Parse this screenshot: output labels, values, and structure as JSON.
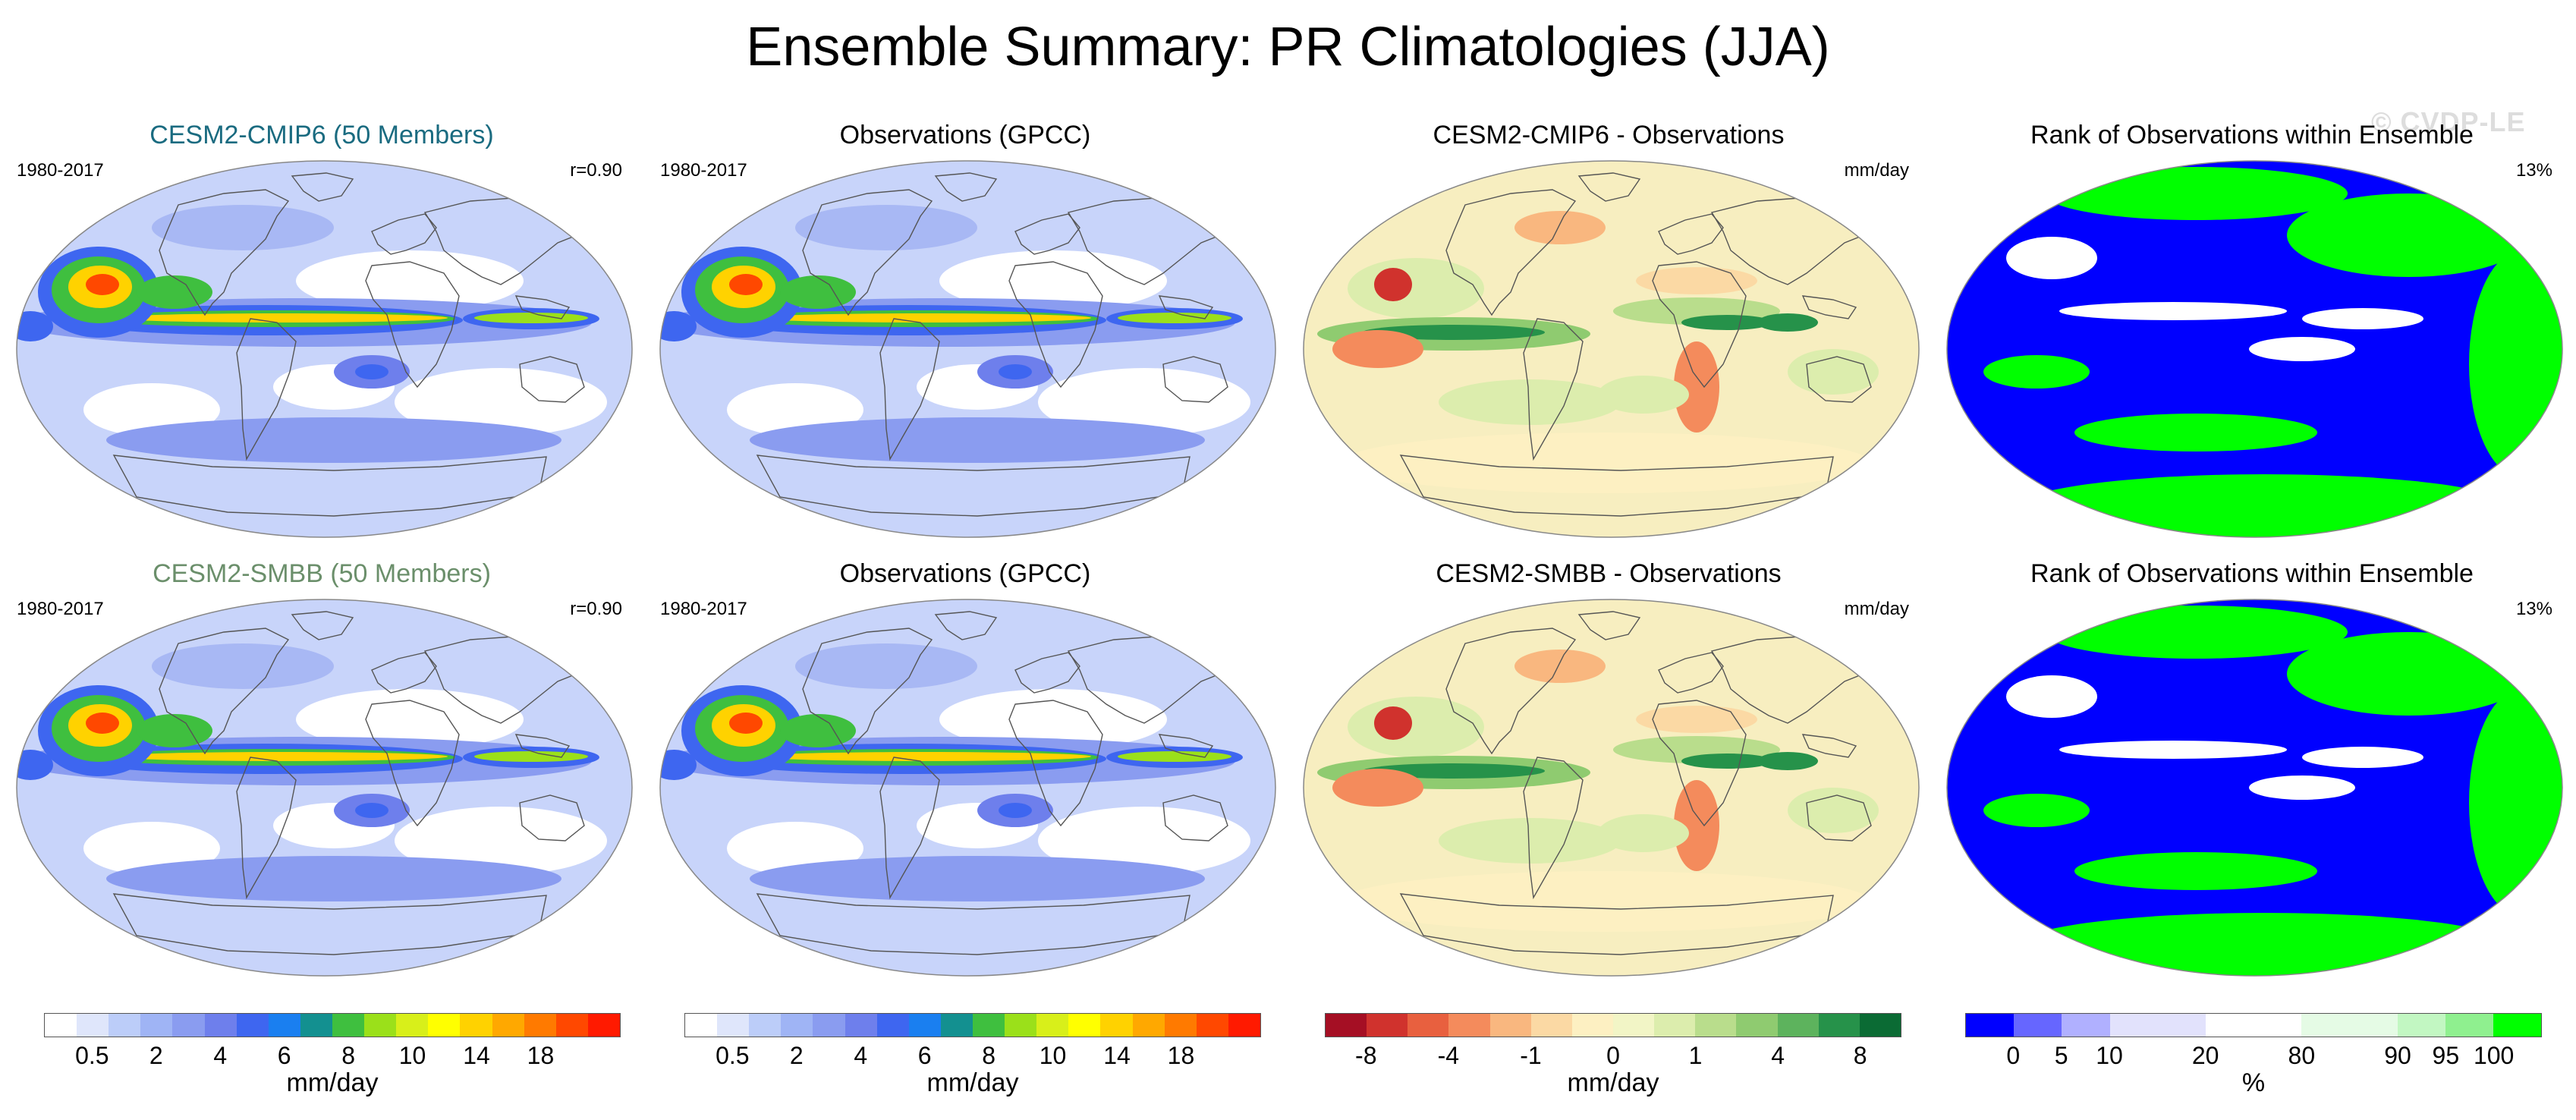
{
  "title": "Ensemble Summary: PR Climatologies (JJA)",
  "watermark": "© CVDP-LE",
  "colors": {
    "model1_title": "#1a6b80",
    "model2_title": "#6b8f6b",
    "land_line": "#555555"
  },
  "rows": [
    {
      "panels": [
        {
          "title": "CESM2-CMIP6 (50 Members)",
          "left": "1980-2017",
          "right": "r=0.90",
          "kind": "precip",
          "title_color": "#1a6b80"
        },
        {
          "title": "Observations (GPCC)",
          "left": "1980-2017",
          "right": "",
          "kind": "precip",
          "title_color": "#000000"
        },
        {
          "title": "CESM2-CMIP6 - Observations",
          "left": "",
          "right": "mm/day",
          "kind": "diff",
          "title_color": "#000000"
        },
        {
          "title": "Rank of Observations within Ensemble",
          "left": "",
          "right": "13%",
          "kind": "rank",
          "title_color": "#000000"
        }
      ]
    },
    {
      "panels": [
        {
          "title": "CESM2-SMBB (50 Members)",
          "left": "1980-2017",
          "right": "r=0.90",
          "kind": "precip",
          "title_color": "#6b8f6b"
        },
        {
          "title": "Observations (GPCC)",
          "left": "1980-2017",
          "right": "",
          "kind": "precip",
          "title_color": "#000000"
        },
        {
          "title": "CESM2-SMBB - Observations",
          "left": "",
          "right": "mm/day",
          "kind": "diff",
          "title_color": "#000000"
        },
        {
          "title": "Rank of Observations within Ensemble",
          "left": "",
          "right": "13%",
          "kind": "rank",
          "title_color": "#000000"
        }
      ]
    }
  ],
  "colorbars": [
    {
      "colors": [
        "#ffffff",
        "#dfe6fb",
        "#bccdf9",
        "#9fb4f5",
        "#8a9cf0",
        "#6e7fec",
        "#3e66f0",
        "#1a7ff0",
        "#139090",
        "#3fbf3f",
        "#9be01a",
        "#d8ef1a",
        "#ffff00",
        "#ffd200",
        "#ffa800",
        "#ff7a00",
        "#ff4800",
        "#ff1a00"
      ],
      "ticks": [
        "0.5",
        "2",
        "4",
        "6",
        "8",
        "10",
        "14",
        "18"
      ],
      "unit": "mm/day"
    },
    {
      "colors": [
        "#ffffff",
        "#dfe6fb",
        "#bccdf9",
        "#9fb4f5",
        "#8a9cf0",
        "#6e7fec",
        "#3e66f0",
        "#1a7ff0",
        "#139090",
        "#3fbf3f",
        "#9be01a",
        "#d8ef1a",
        "#ffff00",
        "#ffd200",
        "#ffa800",
        "#ff7a00",
        "#ff4800",
        "#ff1a00"
      ],
      "ticks": [
        "0.5",
        "2",
        "4",
        "6",
        "8",
        "10",
        "14",
        "18"
      ],
      "unit": "mm/day"
    },
    {
      "colors": [
        "#a50f24",
        "#d0322d",
        "#e8603f",
        "#f48b5c",
        "#f9b77f",
        "#fbd9a4",
        "#fdf0c2",
        "#f2f5c6",
        "#dcedad",
        "#b9dd8c",
        "#8fcb70",
        "#5db35d",
        "#26924a",
        "#0b6b34"
      ],
      "ticks": [
        "-8",
        "-4",
        "-1",
        "0",
        "1",
        "4",
        "8"
      ],
      "unit": "mm/day"
    },
    {
      "colors": [
        "#0000ff",
        "#6666ff",
        "#b0b0ff",
        "#e2e2fc",
        "#e2e2fc",
        "#ffffff",
        "#ffffff",
        "#e5fbe5",
        "#e5fbe5",
        "#c2f7c2",
        "#8ff08f",
        "#00ff00"
      ],
      "ticks": [
        "0",
        "5",
        "10",
        "20",
        "80",
        "90",
        "95",
        "100"
      ],
      "unit": "%"
    }
  ]
}
